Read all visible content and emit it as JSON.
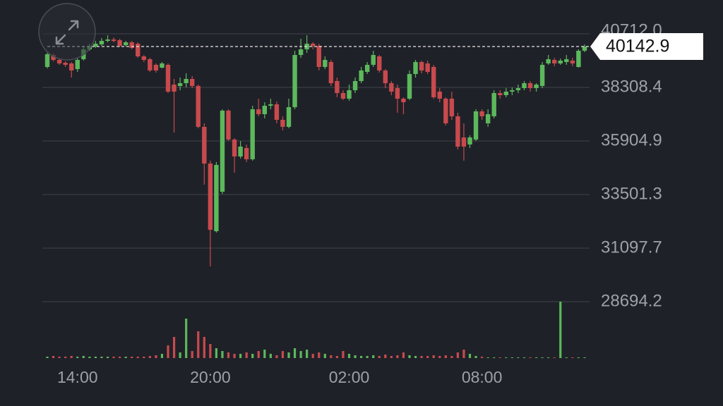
{
  "chart_data": {
    "type": "candlestick",
    "categories": [
      null,
      null,
      null,
      null,
      null,
      "14:00",
      null,
      null,
      null,
      null,
      null,
      null,
      null,
      null,
      null,
      null,
      null,
      null,
      null,
      null,
      null,
      null,
      null,
      null,
      null,
      null,
      null,
      "20:00",
      null,
      null,
      null,
      null,
      null,
      null,
      null,
      null,
      null,
      null,
      null,
      null,
      null,
      null,
      null,
      null,
      null,
      null,
      null,
      null,
      null,
      null,
      "02:00",
      null,
      null,
      null,
      null,
      null,
      null,
      null,
      null,
      null,
      null,
      null,
      null,
      null,
      null,
      null,
      null,
      null,
      null,
      null,
      null,
      null,
      "08:00",
      null,
      null,
      null,
      null,
      null,
      null,
      null,
      null,
      null,
      null,
      null,
      null,
      null,
      null,
      null,
      null,
      null
    ],
    "open": [
      39226,
      39763,
      39542,
      39415,
      39384,
      39131,
      39574,
      40016,
      40143,
      40238,
      40396,
      40459,
      40427,
      40206,
      40333,
      40269,
      39700,
      39574,
      39321,
      39194,
      39321,
      38435,
      38372,
      38498,
      38688,
      38372,
      36538,
      34893,
      31857,
      33628,
      37265,
      35969,
      35209,
      35589,
      35083,
      37328,
      37107,
      37486,
      37550,
      36854,
      36538,
      37423,
      39763,
      40016,
      40269,
      40174,
      39226,
      39447,
      38593,
      38055,
      37803,
      38182,
      38593,
      39004,
      39321,
      39700,
      39068,
      38498,
      38277,
      37803,
      37803,
      38909,
      39447,
      39384,
      39226,
      38118,
      37803,
      37803,
      37012,
      36064,
      35747,
      35969,
      37233,
      36696,
      37012,
      38055,
      37961,
      38118,
      38182,
      38277,
      38498,
      38277,
      38372,
      39384,
      39542,
      39384,
      39447,
      39510,
      39226,
      39953
    ],
    "high": [
      39858,
      39827,
      39605,
      39479,
      39447,
      39605,
      40143,
      40269,
      40396,
      40522,
      40649,
      40554,
      40491,
      40396,
      40396,
      40333,
      39763,
      39637,
      39384,
      39447,
      39384,
      38688,
      38751,
      38941,
      38815,
      38435,
      36696,
      35020,
      34956,
      37328,
      37328,
      36032,
      35905,
      35747,
      37486,
      37803,
      37644,
      37803,
      37676,
      37012,
      37803,
      39953,
      40491,
      40649,
      40333,
      40269,
      39700,
      39542,
      38751,
      38182,
      38435,
      38751,
      39226,
      39447,
      39953,
      39763,
      39131,
      38593,
      38435,
      37866,
      39068,
      39542,
      39510,
      39510,
      39321,
      38277,
      37866,
      38118,
      37170,
      36696,
      36158,
      37328,
      37328,
      37328,
      38182,
      38182,
      38277,
      38309,
      38435,
      38593,
      38593,
      38498,
      39447,
      39763,
      39637,
      39605,
      39763,
      39637,
      40016,
      40238
    ],
    "low": [
      39162,
      39479,
      39321,
      39226,
      38751,
      39004,
      39510,
      39953,
      40080,
      40174,
      40333,
      40333,
      40111,
      40143,
      40016,
      39637,
      39447,
      39004,
      38973,
      39162,
      38055,
      36285,
      38182,
      38309,
      38277,
      36474,
      33944,
      30276,
      31794,
      33533,
      35905,
      34482,
      35114,
      34956,
      35020,
      37012,
      36917,
      37328,
      36696,
      36380,
      36474,
      37328,
      39637,
      39858,
      40016,
      39068,
      39131,
      38372,
      37866,
      37739,
      37708,
      38055,
      38498,
      38909,
      39226,
      38973,
      38277,
      37961,
      37170,
      37107,
      37739,
      38751,
      38941,
      38909,
      37803,
      37644,
      36601,
      36854,
      35525,
      35020,
      35589,
      35905,
      36854,
      36538,
      36917,
      37803,
      37866,
      37961,
      38055,
      38182,
      38118,
      38118,
      38277,
      39321,
      39257,
      39321,
      39321,
      39257,
      39194,
      39890
    ],
    "close": [
      39795,
      39542,
      39384,
      39321,
      39068,
      39542,
      40016,
      40143,
      40269,
      40396,
      40459,
      40396,
      40174,
      40333,
      40080,
      39700,
      39542,
      39068,
      39068,
      39384,
      38118,
      38118,
      38498,
      38688,
      38372,
      36538,
      34893,
      31920,
      34830,
      37265,
      35969,
      35209,
      35652,
      35083,
      37328,
      37107,
      37486,
      37550,
      36854,
      36538,
      37423,
      39763,
      40016,
      40269,
      40174,
      39226,
      39542,
      38498,
      38055,
      37803,
      38182,
      38593,
      39068,
      39321,
      39763,
      39068,
      38498,
      38118,
      37803,
      37644,
      38909,
      39447,
      39068,
      39004,
      37866,
      37803,
      36696,
      37012,
      35652,
      35652,
      36064,
      37233,
      37012,
      37107,
      38055,
      37961,
      38118,
      38182,
      38277,
      38498,
      38277,
      38435,
      39321,
      39574,
      39384,
      39510,
      39574,
      39384,
      39953,
      40142.9
    ],
    "volume": [
      2,
      3,
      2,
      2,
      3,
      2,
      3,
      2,
      2,
      2,
      2,
      2,
      2,
      2,
      2,
      2,
      2,
      3,
      4,
      6,
      18,
      30,
      8,
      56,
      10,
      38,
      30,
      20,
      14,
      10,
      8,
      6,
      6,
      8,
      6,
      10,
      12,
      6,
      4,
      10,
      8,
      14,
      10,
      12,
      6,
      8,
      6,
      4,
      3,
      10,
      6,
      4,
      3,
      3,
      4,
      3,
      5,
      3,
      4,
      8,
      4,
      3,
      3,
      3,
      4,
      3,
      4,
      3,
      8,
      12,
      6,
      3,
      2,
      1,
      1,
      1,
      1,
      1,
      1,
      1,
      1,
      1,
      1,
      1,
      1,
      80,
      1,
      1,
      1,
      1
    ],
    "ylim": [
      28694.2,
      40712.0
    ],
    "yticks": [
      {
        "value": 40712.0,
        "label": "40712.0"
      },
      38308.4,
      35904.9,
      33501.3,
      31097.7,
      28694.2
    ],
    "last_price": 40142.9,
    "grid": true,
    "up_color": "#5cb85c",
    "down_color": "#c84a4d"
  }
}
